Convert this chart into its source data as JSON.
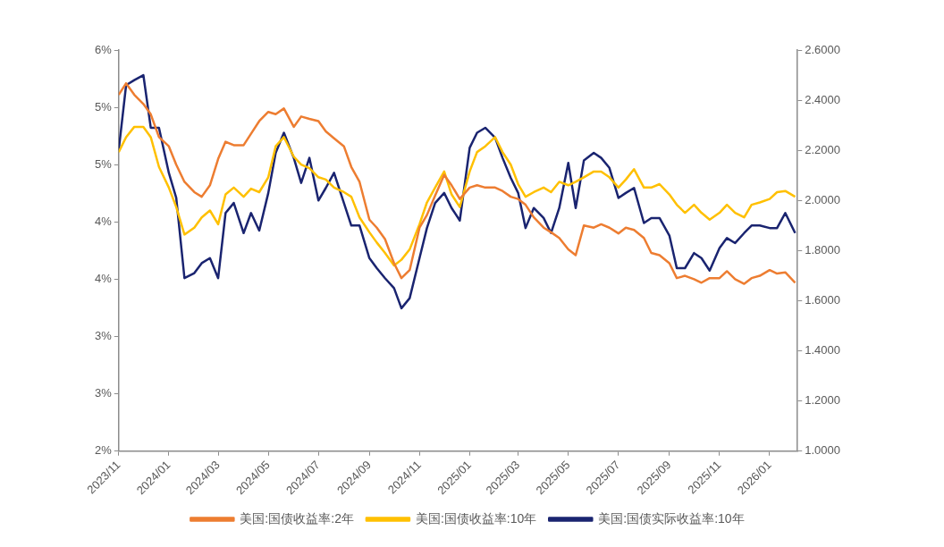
{
  "chart_data": {
    "type": "line",
    "x": [
      "2023-11-01",
      "2023-11-10",
      "2023-11-20",
      "2023-12-01",
      "2023-12-10",
      "2023-12-20",
      "2024-01-01",
      "2024-01-10",
      "2024-01-20",
      "2024-02-01",
      "2024-02-10",
      "2024-02-20",
      "2024-03-01",
      "2024-03-10",
      "2024-03-20",
      "2024-04-01",
      "2024-04-10",
      "2024-04-20",
      "2024-05-01",
      "2024-05-10",
      "2024-05-20",
      "2024-06-01",
      "2024-06-10",
      "2024-06-20",
      "2024-07-01",
      "2024-07-10",
      "2024-07-20",
      "2024-08-01",
      "2024-08-10",
      "2024-08-20",
      "2024-09-01",
      "2024-09-10",
      "2024-09-20",
      "2024-10-01",
      "2024-10-10",
      "2024-10-20",
      "2024-11-01",
      "2024-11-10",
      "2024-11-20",
      "2024-12-01",
      "2024-12-10",
      "2024-12-20",
      "2025-01-01",
      "2025-01-10",
      "2025-01-20",
      "2025-02-01",
      "2025-02-10",
      "2025-02-20",
      "2025-03-01",
      "2025-03-10",
      "2025-03-20",
      "2025-04-01",
      "2025-04-10",
      "2025-04-20",
      "2025-05-01",
      "2025-05-10",
      "2025-05-20",
      "2025-06-01",
      "2025-06-10",
      "2025-06-20",
      "2025-07-01",
      "2025-07-10",
      "2025-07-20",
      "2025-08-01",
      "2025-08-10",
      "2025-08-20",
      "2025-09-01",
      "2025-09-10",
      "2025-09-20",
      "2025-10-01",
      "2025-10-10",
      "2025-10-20",
      "2025-11-01",
      "2025-11-10",
      "2025-11-20",
      "2025-12-01",
      "2025-12-10",
      "2025-12-20",
      "2026-01-01",
      "2026-01-10",
      "2026-01-20",
      "2026-02-01"
    ],
    "series": [
      {
        "name": "美国:国债收益率:2年",
        "color": "#ed7d31",
        "values": [
          5.11,
          5.21,
          5.11,
          5.03,
          4.94,
          4.74,
          4.66,
          4.5,
          4.35,
          4.26,
          4.22,
          4.32,
          4.55,
          4.7,
          4.67,
          4.67,
          4.77,
          4.88,
          4.96,
          4.94,
          4.99,
          4.83,
          4.92,
          4.9,
          4.88,
          4.79,
          4.73,
          4.66,
          4.48,
          4.35,
          4.02,
          3.95,
          3.85,
          3.64,
          3.51,
          3.58,
          3.95,
          4.06,
          4.23,
          4.41,
          4.32,
          4.2,
          4.3,
          4.32,
          4.3,
          4.3,
          4.27,
          4.22,
          4.2,
          4.15,
          4.04,
          3.95,
          3.91,
          3.86,
          3.76,
          3.71,
          3.97,
          3.95,
          3.98,
          3.95,
          3.9,
          3.95,
          3.93,
          3.86,
          3.73,
          3.71,
          3.64,
          3.51,
          3.53,
          3.5,
          3.47,
          3.51,
          3.51,
          3.57,
          3.5,
          3.46,
          3.51,
          3.53,
          3.58,
          3.55,
          3.56,
          3.47
        ]
      },
      {
        "name": "美国:国债收益率:10年",
        "color": "#ffc000",
        "values": [
          4.61,
          4.74,
          4.83,
          4.83,
          4.74,
          4.48,
          4.3,
          4.13,
          3.89,
          3.95,
          4.04,
          4.1,
          3.98,
          4.24,
          4.3,
          4.22,
          4.29,
          4.26,
          4.39,
          4.66,
          4.74,
          4.57,
          4.5,
          4.47,
          4.39,
          4.37,
          4.3,
          4.26,
          4.22,
          4.04,
          3.91,
          3.82,
          3.73,
          3.62,
          3.67,
          3.76,
          3.98,
          4.17,
          4.3,
          4.44,
          4.24,
          4.13,
          4.44,
          4.61,
          4.66,
          4.74,
          4.61,
          4.5,
          4.33,
          4.22,
          4.26,
          4.3,
          4.26,
          4.35,
          4.32,
          4.35,
          4.39,
          4.44,
          4.44,
          4.39,
          4.3,
          4.37,
          4.46,
          4.3,
          4.3,
          4.33,
          4.24,
          4.15,
          4.08,
          4.15,
          4.08,
          4.02,
          4.08,
          4.15,
          4.08,
          4.04,
          4.15,
          4.17,
          4.2,
          4.26,
          4.27,
          4.22
        ]
      },
      {
        "name": "美国:国债实际收益率:10年",
        "color": "#1a2470",
        "axis": "y2",
        "values": [
          2.2,
          2.46,
          2.48,
          2.5,
          2.29,
          2.29,
          2.11,
          2.01,
          1.69,
          1.71,
          1.75,
          1.77,
          1.69,
          1.95,
          1.99,
          1.87,
          1.95,
          1.88,
          2.03,
          2.19,
          2.27,
          2.17,
          2.07,
          2.17,
          2.0,
          2.05,
          2.11,
          1.99,
          1.9,
          1.9,
          1.77,
          1.73,
          1.69,
          1.65,
          1.57,
          1.61,
          1.77,
          1.89,
          1.99,
          2.03,
          1.97,
          1.92,
          2.21,
          2.27,
          2.29,
          2.25,
          2.17,
          2.09,
          2.03,
          1.89,
          1.97,
          1.93,
          1.87,
          1.97,
          2.15,
          1.97,
          2.16,
          2.19,
          2.17,
          2.13,
          2.01,
          2.03,
          2.05,
          1.91,
          1.93,
          1.93,
          1.86,
          1.73,
          1.73,
          1.79,
          1.77,
          1.72,
          1.81,
          1.85,
          1.83,
          1.87,
          1.9,
          1.9,
          1.89,
          1.89,
          1.95,
          1.87
        ]
      }
    ],
    "xlim": [
      "2023-11-01",
      "2026-02-04"
    ],
    "xticks": [
      {
        "value": "2023-11",
        "label": "2023/11"
      },
      {
        "value": "2024-01",
        "label": "2024/01"
      },
      {
        "value": "2024-03",
        "label": "2024/03"
      },
      {
        "value": "2024-05",
        "label": "2024/05"
      },
      {
        "value": "2024-07",
        "label": "2024/07"
      },
      {
        "value": "2024-09",
        "label": "2024/09"
      },
      {
        "value": "2024-11",
        "label": "2024/11"
      },
      {
        "value": "2025-01",
        "label": "2025/01"
      },
      {
        "value": "2025-03",
        "label": "2025/03"
      },
      {
        "value": "2025-05",
        "label": "2025/05"
      },
      {
        "value": "2025-07",
        "label": "2025/07"
      },
      {
        "value": "2025-09",
        "label": "2025/09"
      },
      {
        "value": "2025-11",
        "label": "2025/11"
      },
      {
        "value": "2026-01",
        "label": "2026/01"
      }
    ],
    "ylim": [
      2,
      5.5
    ],
    "yticks": [
      {
        "value": 2,
        "label": "2%"
      },
      {
        "value": 2.5,
        "label": "3%"
      },
      {
        "value": 3,
        "label": "3%"
      },
      {
        "value": 3.5,
        "label": "4%"
      },
      {
        "value": 4,
        "label": "4%"
      },
      {
        "value": 4.5,
        "label": "5%"
      },
      {
        "value": 5,
        "label": "5%"
      },
      {
        "value": 5.5,
        "label": "6%"
      }
    ],
    "y2lim": [
      1,
      2.6
    ],
    "y2ticks": [
      {
        "value": 1,
        "label": "1.0000"
      },
      {
        "value": 1.2,
        "label": "1.2000"
      },
      {
        "value": 1.4,
        "label": "1.4000"
      },
      {
        "value": 1.6,
        "label": "1.6000"
      },
      {
        "value": 1.8,
        "label": "1.8000"
      },
      {
        "value": 2,
        "label": "2.0000"
      },
      {
        "value": 2.2,
        "label": "2.2000"
      },
      {
        "value": 2.4,
        "label": "2.4000"
      },
      {
        "value": 2.6,
        "label": "2.6000"
      }
    ],
    "grid": false,
    "legend": "bottom",
    "marker": "none",
    "line_style": "solid"
  }
}
